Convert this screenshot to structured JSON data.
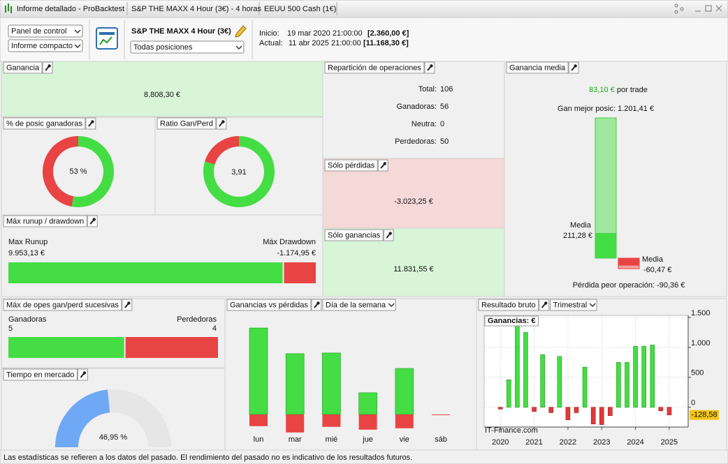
{
  "tabs": [
    "Informe detallado - ProBacktest",
    "S&P THE MAXX 4 Hour (3€) - 4 horas",
    "EEUU 500 Cash (1€)"
  ],
  "toolbar": {
    "select1": "Panel de control",
    "select2": "Informe compacto",
    "strategy": "S&P THE MAXX 4 Hour (3€)",
    "select3": "Todas posiciones",
    "start_label": "Inicio:",
    "start_date": "19 mar 2020 21:00:00",
    "start_price": "[2.360,00 €]",
    "end_label": "Actual:",
    "end_date": "11 abr 2025 21:00:00",
    "end_price": "[11.168,30 €]"
  },
  "panels": {
    "ganancia": {
      "title": "Ganancia",
      "value": "8.808,30 €"
    },
    "winners": {
      "title": "% de posic ganadoras",
      "value": 53,
      "label": "53 %"
    },
    "ratio": {
      "title": "Ratio Gan/Perd",
      "value": 3.91,
      "label": "3,91"
    },
    "runup": {
      "title": "Máx runup / drawdown",
      "runup_name": "Max Runup",
      "runup": 9953.13,
      "runup_label": "9.953,13 €",
      "drawdown_name": "Máx Drawdown",
      "drawdown": -1174.95,
      "drawdown_label": "-1.174,95 €"
    },
    "distribution": {
      "title": "Repartición de operaciones",
      "labels": [
        "Total:",
        "Ganadoras:",
        "Neutra:",
        "Perdedoras:"
      ],
      "values": [
        106,
        56,
        0,
        50
      ]
    },
    "losses": {
      "title": "Sólo pérdidas",
      "value": "-3.023,25 €"
    },
    "gains": {
      "title": "Sólo ganancias",
      "value": "11.831,55 €"
    },
    "average": {
      "title": "Ganancia media",
      "value": "83,10 €",
      "unit": "por trade",
      "best": {
        "value": 1201.41,
        "label": "Gan mejor posic: 1.201,41 €"
      },
      "avg_win": {
        "value": 211.28,
        "name": "Media",
        "label": "211,28 €"
      },
      "avg_loss": {
        "value": -60.47,
        "name": "Media",
        "label": "-60,47 €"
      },
      "worst": {
        "value": -90.36,
        "label": "Pérdida peor operación: -90,36 €"
      }
    },
    "streaks": {
      "title": "Máx de opes gan/perd sucesivas",
      "win_name": "Ganadoras",
      "wins": 5,
      "loss_name": "Perdedoras",
      "losses": 4
    },
    "market_time": {
      "title": "Tiempo en mercado",
      "value": 46.95,
      "label": "46,95 %"
    },
    "weekday": {
      "type": "bar",
      "title": "Ganancias vs pérdidas",
      "selector": "Día de la semana",
      "categories": [
        "lun",
        "mar",
        "mié",
        "jue",
        "vie",
        "sáb"
      ],
      "gains": [
        3700,
        2600,
        2630,
        930,
        1970,
        0
      ],
      "losses": [
        -500,
        -770,
        -530,
        -650,
        -590,
        0
      ],
      "ylim": [
        -1000,
        4200
      ]
    },
    "gross": {
      "type": "bar",
      "title": "Resultado bruto",
      "selector": "Trimestral",
      "legend": "Ganancias: €",
      "watermark": "IT-Finance.com",
      "x": [
        2020,
        2020.25,
        2020.5,
        2020.75,
        2021,
        2021.25,
        2021.5,
        2021.75,
        2022,
        2022.25,
        2022.5,
        2022.75,
        2023,
        2023.25,
        2023.5,
        2023.75,
        2024,
        2024.25,
        2024.5,
        2024.75,
        2025
      ],
      "values": [
        -30,
        460,
        1380,
        1250,
        -70,
        880,
        -90,
        850,
        -210,
        -90,
        670,
        -280,
        -290,
        -140,
        750,
        750,
        1020,
        1020,
        1040,
        -60,
        -128.58
      ],
      "xlim": [
        2019.52,
        2025.56
      ],
      "xticks": [
        2020,
        2021,
        2022,
        2023,
        2024,
        2025
      ],
      "ylim": [
        -330,
        1535
      ],
      "yticks": [
        0,
        500,
        {
          "value": 1000,
          "label": "1.000"
        },
        {
          "value": 1500,
          "label": "1.500"
        }
      ],
      "last_label": "-128,58"
    }
  },
  "footer": "Las estadísticas se refieren a los datos del pasado. El rendimiento del pasado no es indicativo de los resultados futuros."
}
